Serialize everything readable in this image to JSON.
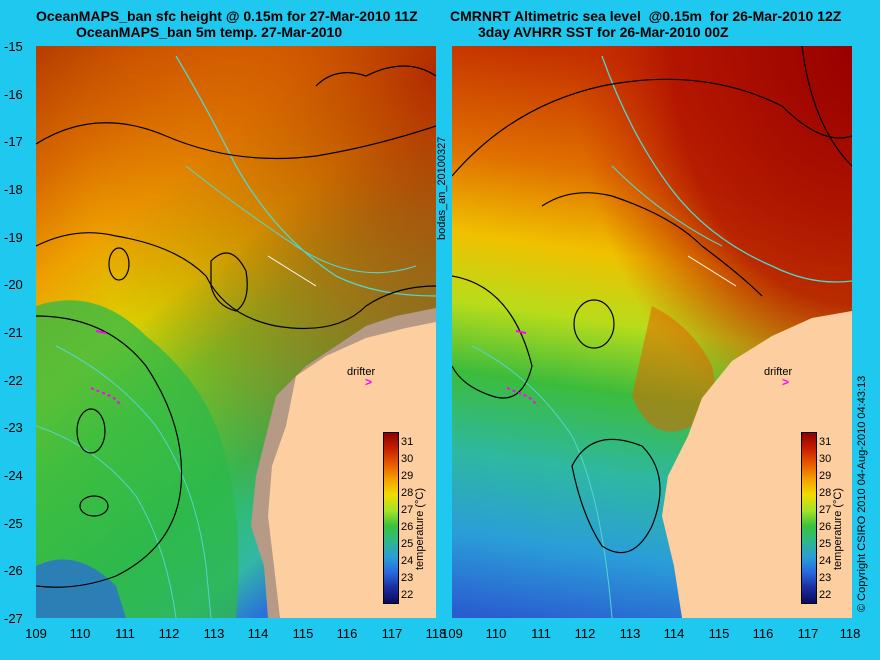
{
  "left_title": {
    "line1": "OceanMAPS_ban sfc height @ 0.15m for 27-Mar-2010 11Z",
    "line2": "OceanMAPS_ban 5m temp. 27-Mar-2010"
  },
  "right_title": {
    "line1": "CMRNRT Altimetric sea level  @0.15m  for 26-Mar-2010 12Z",
    "line2": "3day AVHRR SST for 26-Mar-2010 00Z"
  },
  "y_ticks": [
    "-15",
    "-16",
    "-17",
    "-18",
    "-19",
    "-20",
    "-21",
    "-22",
    "-23",
    "-24",
    "-25",
    "-26",
    "-27"
  ],
  "x_ticks": [
    "109",
    "110",
    "111",
    "112",
    "113",
    "114",
    "115",
    "116",
    "117",
    "118"
  ],
  "side_label_left": "bodas_an_20100327",
  "side_label_right": "© Copyright CSIRO 2010   04-Aug-2010 04:43:13",
  "drifter_label": "drifter",
  "colorbar": {
    "ticks": [
      "31",
      "30",
      "29",
      "28",
      "27",
      "26",
      "25",
      "24",
      "23",
      "22"
    ],
    "label": "temperature (°C)",
    "colors": [
      "#8b0000",
      "#c81e00",
      "#e65a00",
      "#f5a000",
      "#f0dc00",
      "#a6e22a",
      "#3cc23c",
      "#2eb88a",
      "#2a9ed8",
      "#2a6ae0",
      "#1a2ea0",
      "#0a0a60"
    ]
  },
  "colors": {
    "background": "#1ec8ee",
    "land": "#fdcfa0",
    "model_land": "#b69a86",
    "contour": "#000000",
    "coastline": "#55d4cc",
    "drifter_marker": "#ff00ff"
  }
}
